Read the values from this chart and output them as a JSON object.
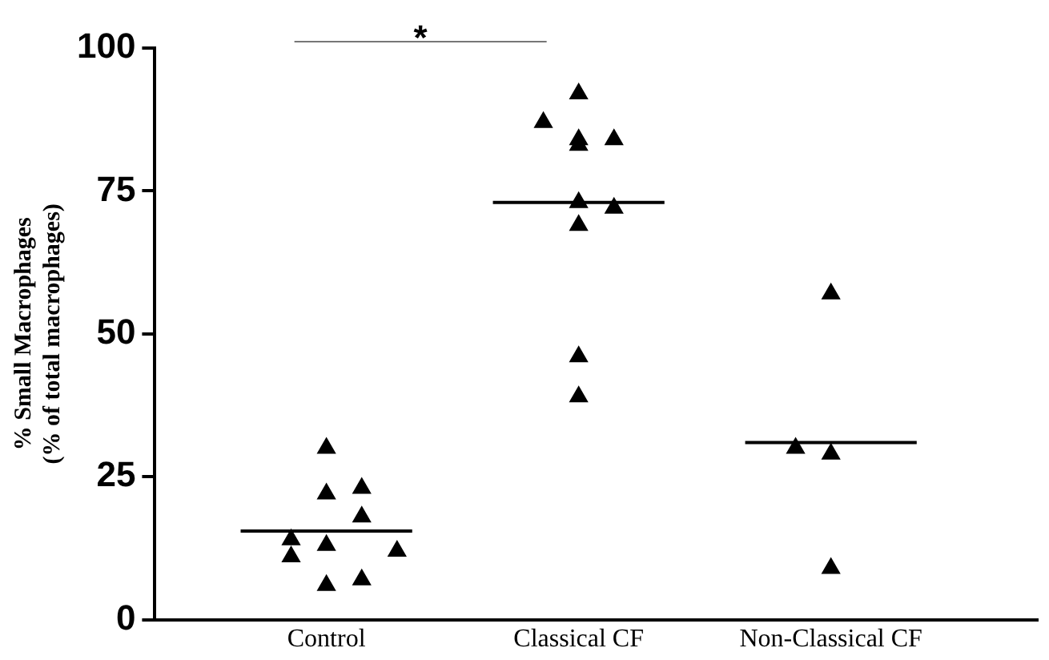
{
  "chart_data": {
    "type": "scatter",
    "ylabel": "% Small Macrophages\n(% of total macrophages)",
    "categories": [
      "Control",
      "Classical CF",
      "Non-Classical CF"
    ],
    "series": [
      {
        "color": "#000000",
        "marker": "triangle",
        "x": [
          "Control",
          "Control",
          "Classical CF",
          "Non-Classical CF"
        ],
        "values": [
          14,
          11,
          87,
          30
        ]
      },
      {
        "color": "#000000",
        "marker": "triangle",
        "x": [
          "Control",
          "Control",
          "Control",
          "Control",
          "Classical CF",
          "Classical CF",
          "Classical CF",
          "Classical CF",
          "Classical CF",
          "Classical CF",
          "Classical CF",
          "Non-Classical CF",
          "Non-Classical CF",
          "Non-Classical CF"
        ],
        "values": [
          30,
          22,
          13,
          6,
          92,
          83,
          69,
          46,
          39,
          84,
          73,
          57,
          29,
          9
        ]
      },
      {
        "color": "#000000",
        "marker": "triangle",
        "x": [
          "Control",
          "Control",
          "Control",
          "Classical CF",
          "Classical CF"
        ],
        "values": [
          23,
          18,
          7,
          84,
          72
        ]
      },
      {
        "color": "#000000",
        "marker": "triangle",
        "x": [
          "Control"
        ],
        "values": [
          12
        ]
      },
      {
        "type": "box",
        "color": "#000000",
        "boxes": [
          {
            "low": 15.5,
            "q1": 15.5,
            "median": 15.5,
            "q3": 15.5,
            "high": 15.5
          },
          {
            "low": 73,
            "q1": 73,
            "median": 73,
            "q3": 73,
            "high": 73
          },
          {
            "low": 31,
            "q1": 31,
            "median": 31,
            "q3": 31,
            "high": 31
          }
        ]
      }
    ],
    "ylim": [
      0,
      100
    ],
    "yticks": [
      0,
      25,
      50,
      75,
      100
    ],
    "grid": false,
    "legend": false,
    "annotations": [
      "*"
    ]
  }
}
